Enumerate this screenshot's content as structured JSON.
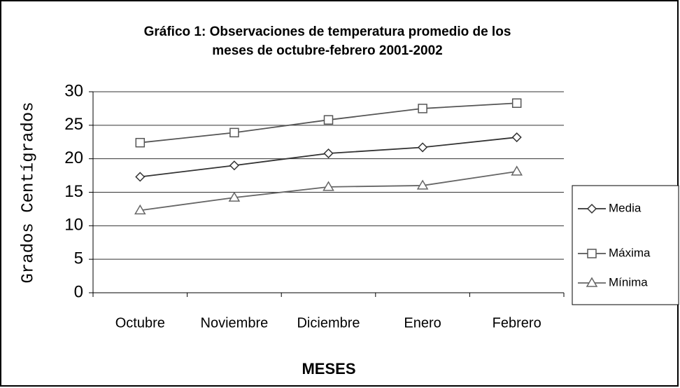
{
  "chart_data": {
    "type": "line",
    "title": [
      "Gráfico 1: Observaciones de temperatura promedio de los",
      "meses de octubre-febrero 2001-2002"
    ],
    "x_label": "MESES",
    "y_label": "Grados Centígrados",
    "categories": [
      "Octubre",
      "Noviembre",
      "Diciembre",
      "Enero",
      "Febrero"
    ],
    "series": [
      {
        "name": "Media",
        "color": "#333333",
        "marker": "diamond",
        "values": [
          17.3,
          19.0,
          20.8,
          21.7,
          23.2
        ]
      },
      {
        "name": "Máxima",
        "color": "#555555",
        "marker": "square",
        "values": [
          22.4,
          23.9,
          25.8,
          27.5,
          28.3
        ]
      },
      {
        "name": "Mínima",
        "color": "#666666",
        "marker": "triangle",
        "values": [
          12.3,
          14.2,
          15.8,
          16.0,
          18.1
        ]
      }
    ],
    "ylim": [
      0,
      30
    ],
    "yticks": [
      0,
      5,
      10,
      15,
      20,
      25,
      30
    ],
    "grid": true,
    "legend": "right"
  }
}
